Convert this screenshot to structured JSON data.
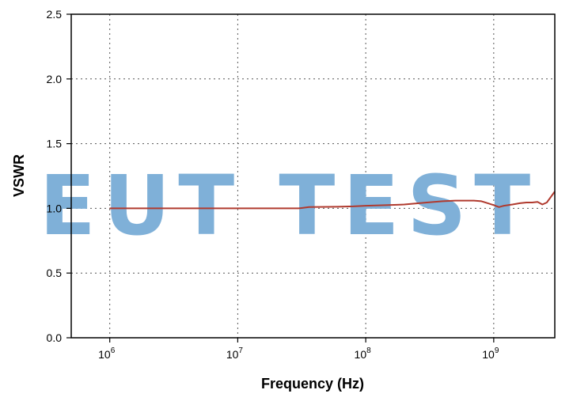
{
  "chart_data": {
    "type": "line",
    "xlabel": "Frequency (Hz)",
    "ylabel": "VSWR",
    "xscale": "log",
    "xlim": [
      500000,
      3000000000
    ],
    "ylim": [
      0,
      2.5
    ],
    "x_ticks": [
      {
        "value": 1000000,
        "base": "10",
        "exp": "6"
      },
      {
        "value": 10000000,
        "base": "10",
        "exp": "7"
      },
      {
        "value": 100000000,
        "base": "10",
        "exp": "8"
      },
      {
        "value": 1000000000,
        "base": "10",
        "exp": "9"
      }
    ],
    "y_ticks": [
      {
        "value": 0.0,
        "label": "0.0"
      },
      {
        "value": 0.5,
        "label": "0.5"
      },
      {
        "value": 1.0,
        "label": "1.0"
      },
      {
        "value": 1.5,
        "label": "1.5"
      },
      {
        "value": 2.0,
        "label": "2.0"
      },
      {
        "value": 2.5,
        "label": "2.5"
      }
    ],
    "grid": true,
    "series": [
      {
        "color": "#b03a2e",
        "x": [
          1000000,
          3000000,
          10000000,
          30000000,
          36000000,
          60000000,
          80000000,
          100000000,
          150000000,
          200000000,
          300000000,
          400000000,
          500000000,
          700000000,
          800000000,
          900000000,
          1000000000,
          1100000000,
          1200000000,
          1400000000,
          1600000000,
          1800000000,
          2000000000,
          2200000000,
          2400000000,
          2600000000,
          3000000000
        ],
        "y": [
          1.0,
          1.0,
          1.0,
          1.0,
          1.01,
          1.012,
          1.015,
          1.02,
          1.025,
          1.03,
          1.045,
          1.055,
          1.06,
          1.06,
          1.055,
          1.04,
          1.025,
          1.01,
          1.02,
          1.03,
          1.04,
          1.045,
          1.045,
          1.05,
          1.03,
          1.045,
          1.13
        ]
      }
    ]
  },
  "watermark": {
    "text": "EUT TEST",
    "color": "#7fb0d8"
  }
}
